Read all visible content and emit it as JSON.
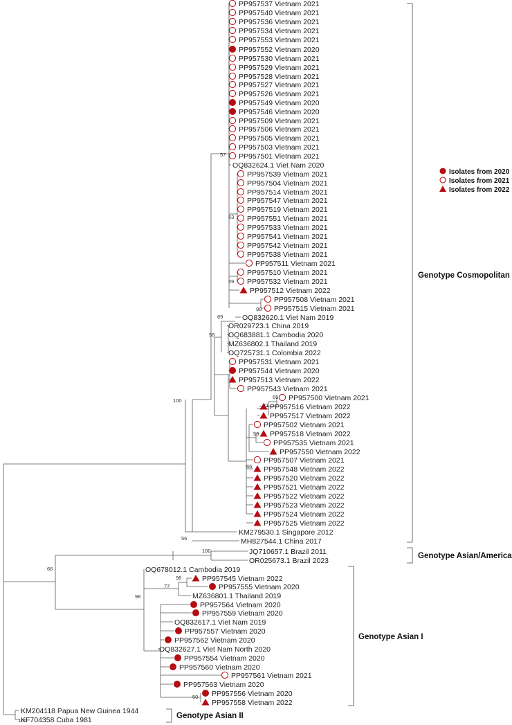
{
  "colors": {
    "marker": "#b50d12",
    "branch": "#555555"
  },
  "legend": [
    {
      "marker": "filled-circle",
      "label": "Isolates from 2020"
    },
    {
      "marker": "open-circle",
      "label": "Isolates from 2021"
    },
    {
      "marker": "triangle",
      "label": "Isolates from 2022"
    }
  ],
  "genotypes": {
    "cosmopolitan": "Genotype Cosmopolitan",
    "asian_american": "Genotype Asian/American",
    "asian_1": "Genotype Asian I",
    "asian_2": "Genotype Asian II"
  },
  "bootstrap": [
    "57",
    "63",
    "59",
    "98",
    "69",
    "58",
    "65",
    "71",
    "53",
    "66",
    "100",
    "56",
    "100",
    "66",
    "96",
    "77",
    "98",
    "50",
    "100"
  ],
  "leaves": [
    {
      "label": "PP957537 Vietnam 2021",
      "marker": "open"
    },
    {
      "label": "PP957540 Vietnam 2021",
      "marker": "open"
    },
    {
      "label": "PP957536 Vietnam 2021",
      "marker": "open"
    },
    {
      "label": "PP957534 Vietnam 2021",
      "marker": "open"
    },
    {
      "label": "PP957553 Vietnam 2021",
      "marker": "open"
    },
    {
      "label": "PP957552 Vietnam 2020",
      "marker": "filled"
    },
    {
      "label": "PP957530 Vietnam 2021",
      "marker": "open"
    },
    {
      "label": "PP957529 Vietnam 2021",
      "marker": "open"
    },
    {
      "label": "PP957528 Vietnam 2021",
      "marker": "open"
    },
    {
      "label": "PP957527 Vietnam 2021",
      "marker": "open"
    },
    {
      "label": "PP957526 Vietnam 2021",
      "marker": "open"
    },
    {
      "label": "PP957549 Vietnam 2020",
      "marker": "filled"
    },
    {
      "label": "PP957546 Vietnam 2020",
      "marker": "filled"
    },
    {
      "label": "PP957509 Vietnam 2021",
      "marker": "open"
    },
    {
      "label": "PP957506 Vietnam 2021",
      "marker": "open"
    },
    {
      "label": "PP957505 Vietnam 2021",
      "marker": "open"
    },
    {
      "label": "PP957503 Vietnam 2021",
      "marker": "open"
    },
    {
      "label": "PP957501 Vietnam 2021",
      "marker": "open"
    },
    {
      "label": "OQ832624.1 Viet Nam 2020",
      "marker": "none"
    },
    {
      "label": "PP957539 Vietnam 2021",
      "marker": "open"
    },
    {
      "label": "PP957504 Vietnam 2021",
      "marker": "open"
    },
    {
      "label": "PP957514 Vietnam 2021",
      "marker": "open"
    },
    {
      "label": "PP957547 Vietnam 2021",
      "marker": "open"
    },
    {
      "label": "PP957519 Vietnam 2021",
      "marker": "open"
    },
    {
      "label": "PP957551 Vietnam 2021",
      "marker": "open"
    },
    {
      "label": "PP957533 Vietnam 2021",
      "marker": "open"
    },
    {
      "label": "PP957541 Vietnam 2021",
      "marker": "open"
    },
    {
      "label": "PP957542 Vietnam 2021",
      "marker": "open"
    },
    {
      "label": "PP957538 Vietnam 2021",
      "marker": "open"
    },
    {
      "label": "PP957511 Vietnam 2021",
      "marker": "open"
    },
    {
      "label": "PP957510 Vietnam 2021",
      "marker": "open"
    },
    {
      "label": "PP957532 Vietnam 2021",
      "marker": "open"
    },
    {
      "label": "PP957512 Vietnam 2022",
      "marker": "tri"
    },
    {
      "label": "PP957508 Vietnam 2021",
      "marker": "open"
    },
    {
      "label": "PP957515 Vietnam 2021",
      "marker": "open"
    },
    {
      "label": "OQ832620.1 Viet Nam 2019",
      "marker": "none"
    },
    {
      "label": "OR029723.1 China 2019",
      "marker": "none"
    },
    {
      "label": "OQ683881.1 Cambodia 2020",
      "marker": "none"
    },
    {
      "label": "MZ636802.1 Thailand 2019",
      "marker": "none"
    },
    {
      "label": "OQ725731.1 Colombia 2022",
      "marker": "none"
    },
    {
      "label": "PP957531 Vietnam 2021",
      "marker": "open"
    },
    {
      "label": "PP957544 Vietnam 2020",
      "marker": "filled"
    },
    {
      "label": "PP957513 Vietnam 2022",
      "marker": "tri"
    },
    {
      "label": "PP957543 Vietnam 2021",
      "marker": "open"
    },
    {
      "label": "PP957500 Vietnam 2021",
      "marker": "open"
    },
    {
      "label": "PP957516 Vietnam 2022",
      "marker": "tri"
    },
    {
      "label": "PP957517 Vietnam 2022",
      "marker": "tri"
    },
    {
      "label": "PP957502 Vietnam 2021",
      "marker": "open"
    },
    {
      "label": "PP957518 Vietnam 2022",
      "marker": "tri"
    },
    {
      "label": "PP957535 Vietnam 2021",
      "marker": "open"
    },
    {
      "label": "PP957550 Vietnam 2022",
      "marker": "tri"
    },
    {
      "label": "PP957507 Vietnam 2021",
      "marker": "open"
    },
    {
      "label": "PP957548 Vietnam 2022",
      "marker": "tri"
    },
    {
      "label": "PP957520 Vietnam 2022",
      "marker": "tri"
    },
    {
      "label": "PP957521 Vietnam 2022",
      "marker": "tri"
    },
    {
      "label": "PP957522 Vietnam 2022",
      "marker": "tri"
    },
    {
      "label": "PP957523 Vietnam 2022",
      "marker": "tri"
    },
    {
      "label": "PP957524 Vietnam 2022",
      "marker": "tri"
    },
    {
      "label": "PP957525 Vietnam 2022",
      "marker": "tri"
    },
    {
      "label": "KM279530.1 Singapore 2012",
      "marker": "none"
    },
    {
      "label": "MH827544.1 China 2017",
      "marker": "none"
    },
    {
      "label": "JQ710657.1 Brazil 2011",
      "marker": "none"
    },
    {
      "label": "OR025673.1 Brazil 2023",
      "marker": "none"
    },
    {
      "label": "OQ678012.1 Cambodia 2019",
      "marker": "none"
    },
    {
      "label": "PP957545 Vietnam 2022",
      "marker": "tri"
    },
    {
      "label": "PP957555 Vietnam 2020",
      "marker": "filled"
    },
    {
      "label": "MZ636801.1 Thailand 2019",
      "marker": "none"
    },
    {
      "label": "PP957564 Vietnam 2020",
      "marker": "filled"
    },
    {
      "label": "PP957559 Vietnam 2020",
      "marker": "filled"
    },
    {
      "label": "OQ832617.1 Viet Nam 2019",
      "marker": "none"
    },
    {
      "label": "PP957557 Vietnam 2020",
      "marker": "filled"
    },
    {
      "label": "PP957562 Vietnam 2020",
      "marker": "filled"
    },
    {
      "label": "OQ832627.1 Viet Nam North 2020",
      "marker": "none"
    },
    {
      "label": "PP957554 Vietnam 2020",
      "marker": "filled"
    },
    {
      "label": "PP957560 Vietnam 2020",
      "marker": "filled"
    },
    {
      "label": "PP957561 Vietnam 2021",
      "marker": "open"
    },
    {
      "label": "PP957563 Vietnam 2020",
      "marker": "filled"
    },
    {
      "label": "PP957556 Vietnam 2020",
      "marker": "filled"
    },
    {
      "label": "PP957558 Vietnam 2022",
      "marker": "tri"
    },
    {
      "label": "KM204118 Papua New Guinea 1944",
      "marker": "none"
    },
    {
      "label": "KF704358 Cuba 1981",
      "marker": "none"
    }
  ]
}
